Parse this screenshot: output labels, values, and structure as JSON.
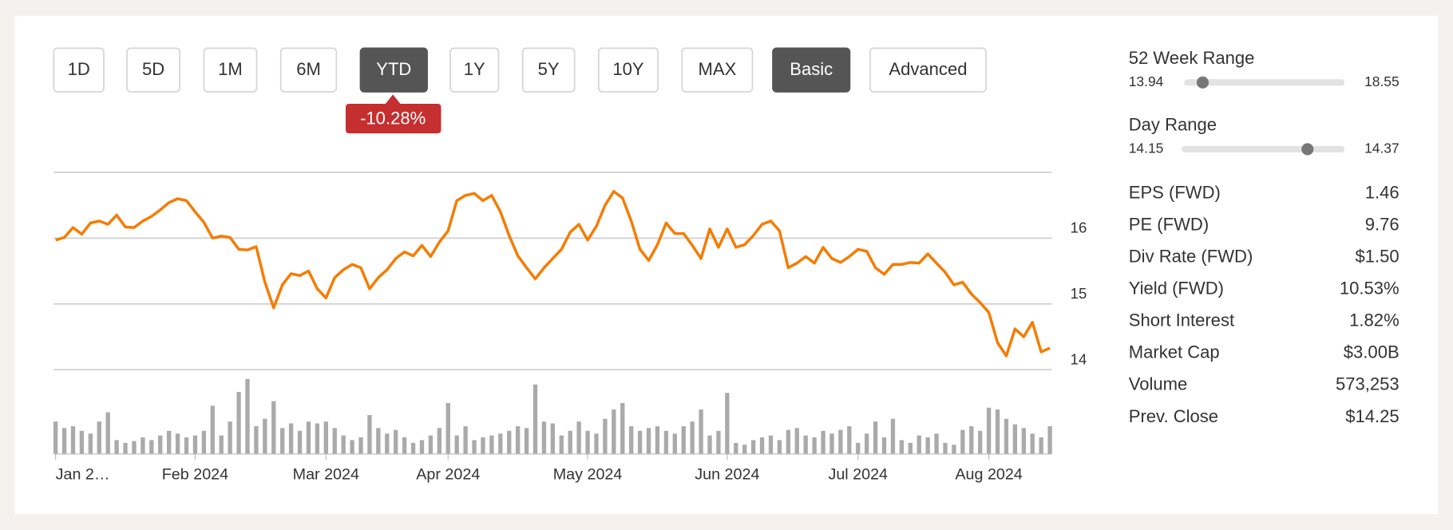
{
  "toolbar": {
    "buttons": [
      {
        "label": "1D",
        "selected": false
      },
      {
        "label": "5D",
        "selected": false
      },
      {
        "label": "1M",
        "selected": false
      },
      {
        "label": "6M",
        "selected": false
      },
      {
        "label": "YTD",
        "selected": true
      },
      {
        "label": "1Y",
        "selected": false
      },
      {
        "label": "5Y",
        "selected": false
      },
      {
        "label": "10Y",
        "selected": false
      },
      {
        "label": "MAX",
        "selected": false
      },
      {
        "label": "Basic",
        "selected": true
      },
      {
        "label": "Advanced",
        "selected": false
      }
    ]
  },
  "change_badge": "-10.28%",
  "chart_data": {
    "type": "line",
    "color": "#f57c00",
    "ylim": [
      14,
      17
    ],
    "yticks": [
      14,
      15,
      16
    ],
    "grid": true,
    "categories": [
      "Jan 2…",
      null,
      null,
      null,
      null,
      null,
      null,
      null,
      null,
      null,
      null,
      null,
      null,
      null,
      null,
      null,
      "Feb 2024",
      null,
      null,
      null,
      null,
      null,
      null,
      null,
      null,
      null,
      null,
      null,
      null,
      null,
      null,
      "Mar 2024",
      null,
      null,
      null,
      null,
      null,
      null,
      null,
      null,
      null,
      null,
      null,
      null,
      null,
      "Apr 2024",
      null,
      null,
      null,
      null,
      null,
      null,
      null,
      null,
      null,
      null,
      null,
      null,
      null,
      null,
      null,
      "May 2024",
      null,
      null,
      null,
      null,
      null,
      null,
      null,
      null,
      null,
      null,
      null,
      null,
      null,
      null,
      null,
      "Jun 2024",
      null,
      null,
      null,
      null,
      null,
      null,
      null,
      null,
      null,
      null,
      null,
      null,
      null,
      null,
      "Jul 2024",
      null,
      null,
      null,
      null,
      null,
      null,
      null,
      null,
      null,
      null,
      null,
      null,
      null,
      null,
      "Aug 2024",
      null,
      null,
      null,
      null,
      null,
      null,
      null
    ],
    "values": [
      15.97,
      16.01,
      16.16,
      16.06,
      16.23,
      16.26,
      16.21,
      16.35,
      16.17,
      16.16,
      16.26,
      16.33,
      16.43,
      16.54,
      16.6,
      16.57,
      16.4,
      16.24,
      16.0,
      16.03,
      16.01,
      15.83,
      15.82,
      15.87,
      15.33,
      14.94,
      15.29,
      15.46,
      15.43,
      15.5,
      15.23,
      15.09,
      15.4,
      15.52,
      15.6,
      15.55,
      15.23,
      15.4,
      15.52,
      15.69,
      15.79,
      15.73,
      15.89,
      15.72,
      15.94,
      16.11,
      16.57,
      16.65,
      16.68,
      16.57,
      16.65,
      16.4,
      16.04,
      15.73,
      15.55,
      15.38,
      15.55,
      15.69,
      15.83,
      16.09,
      16.21,
      15.97,
      16.18,
      16.5,
      16.71,
      16.61,
      16.26,
      15.83,
      15.66,
      15.9,
      16.23,
      16.07,
      16.07,
      15.89,
      15.69,
      16.14,
      15.86,
      16.14,
      15.86,
      15.9,
      16.04,
      16.21,
      16.26,
      16.11,
      15.55,
      15.62,
      15.72,
      15.62,
      15.86,
      15.69,
      15.63,
      15.72,
      15.83,
      15.8,
      15.55,
      15.45,
      15.6,
      15.6,
      15.63,
      15.62,
      15.76,
      15.62,
      15.48,
      15.29,
      15.33,
      15.15,
      15.02,
      14.87,
      14.41,
      14.21,
      14.62,
      14.5,
      14.72,
      14.27,
      14.33
    ],
    "volume": {
      "color": "#aaaaaa",
      "ylim": [
        0,
        85
      ],
      "values": [
        35,
        28,
        30,
        25,
        22,
        35,
        45,
        15,
        12,
        14,
        18,
        15,
        20,
        25,
        22,
        18,
        20,
        25,
        52,
        20,
        35,
        67,
        81,
        30,
        38,
        57,
        28,
        33,
        25,
        35,
        33,
        35,
        28,
        20,
        15,
        18,
        42,
        28,
        22,
        26,
        18,
        12,
        15,
        20,
        28,
        55,
        20,
        30,
        15,
        18,
        20,
        22,
        25,
        30,
        28,
        75,
        35,
        33,
        20,
        25,
        35,
        25,
        22,
        38,
        48,
        55,
        30,
        25,
        28,
        30,
        25,
        22,
        30,
        35,
        48,
        20,
        25,
        66,
        12,
        10,
        15,
        18,
        20,
        15,
        26,
        28,
        20,
        18,
        25,
        22,
        26,
        30,
        12,
        22,
        35,
        18,
        38,
        15,
        12,
        20,
        18,
        22,
        12,
        10,
        26,
        30,
        25,
        50,
        48,
        38,
        32,
        28,
        22,
        18,
        30
      ]
    }
  },
  "stats": {
    "ranges": [
      {
        "label": "52 Week Range",
        "low": 13.94,
        "high": 18.55,
        "marker": 14.47
      },
      {
        "label": "Day Range",
        "low": 14.15,
        "high": 14.37,
        "marker": 14.32
      }
    ],
    "rows": [
      {
        "label": "EPS (FWD)",
        "value": "1.46"
      },
      {
        "label": "PE (FWD)",
        "value": "9.76"
      },
      {
        "label": "Div Rate (FWD)",
        "value": "$1.50"
      },
      {
        "label": "Yield (FWD)",
        "value": "10.53%"
      },
      {
        "label": "Short Interest",
        "value": "1.82%"
      },
      {
        "label": "Market Cap",
        "value": "$3.00B"
      },
      {
        "label": "Volume",
        "value": "573,253"
      },
      {
        "label": "Prev. Close",
        "value": "$14.25"
      }
    ]
  }
}
